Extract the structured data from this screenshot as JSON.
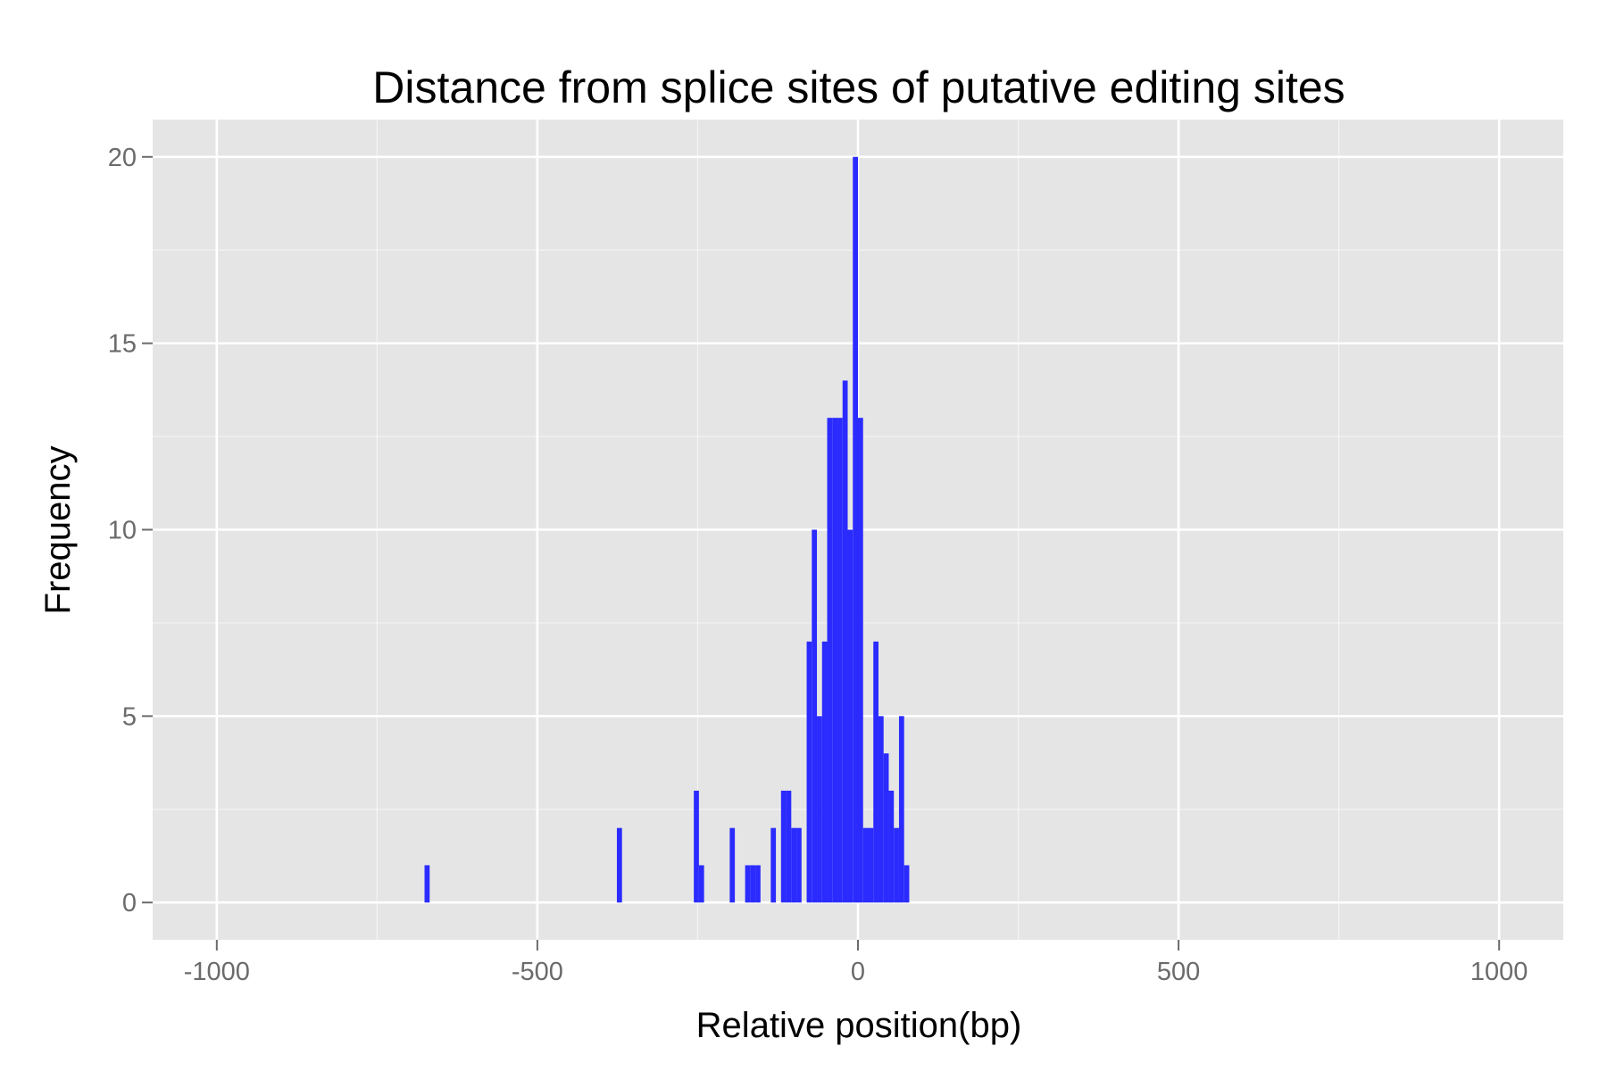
{
  "chart_data": {
    "type": "bar",
    "title": "Distance from splice sites of putative editing sites",
    "xlabel": "Relative position(bp)",
    "ylabel": "Frequency",
    "xlim": [
      -1100,
      1100
    ],
    "ylim": [
      -1,
      21
    ],
    "x_ticks": [
      -1000,
      -500,
      0,
      500,
      1000
    ],
    "x_tick_labels": [
      "-1000",
      "-500",
      "0",
      "500",
      "1000"
    ],
    "y_ticks": [
      0,
      5,
      10,
      15,
      20
    ],
    "y_tick_labels": [
      "0",
      "5",
      "10",
      "15",
      "20"
    ],
    "grid": true,
    "legend": "none",
    "bin_width": 8,
    "bar_color": "#2b2bff",
    "panel_background": "#e5e5e5",
    "gridline_color": "#ffffff",
    "bins": [
      {
        "x": -672,
        "count": 1
      },
      {
        "x": -372,
        "count": 2
      },
      {
        "x": -252,
        "count": 3
      },
      {
        "x": -244,
        "count": 1
      },
      {
        "x": -196,
        "count": 2
      },
      {
        "x": -172,
        "count": 1
      },
      {
        "x": -164,
        "count": 1
      },
      {
        "x": -156,
        "count": 1
      },
      {
        "x": -132,
        "count": 2
      },
      {
        "x": -116,
        "count": 3
      },
      {
        "x": -108,
        "count": 3
      },
      {
        "x": -100,
        "count": 2
      },
      {
        "x": -92,
        "count": 2
      },
      {
        "x": -76,
        "count": 7
      },
      {
        "x": -68,
        "count": 10
      },
      {
        "x": -60,
        "count": 5
      },
      {
        "x": -52,
        "count": 7
      },
      {
        "x": -44,
        "count": 13
      },
      {
        "x": -36,
        "count": 13
      },
      {
        "x": -28,
        "count": 13
      },
      {
        "x": -20,
        "count": 14
      },
      {
        "x": -12,
        "count": 10
      },
      {
        "x": -4,
        "count": 20
      },
      {
        "x": 4,
        "count": 13
      },
      {
        "x": 12,
        "count": 2
      },
      {
        "x": 20,
        "count": 2
      },
      {
        "x": 28,
        "count": 7
      },
      {
        "x": 36,
        "count": 5
      },
      {
        "x": 44,
        "count": 4
      },
      {
        "x": 52,
        "count": 3
      },
      {
        "x": 60,
        "count": 2
      },
      {
        "x": 68,
        "count": 5
      },
      {
        "x": 76,
        "count": 1
      }
    ]
  }
}
